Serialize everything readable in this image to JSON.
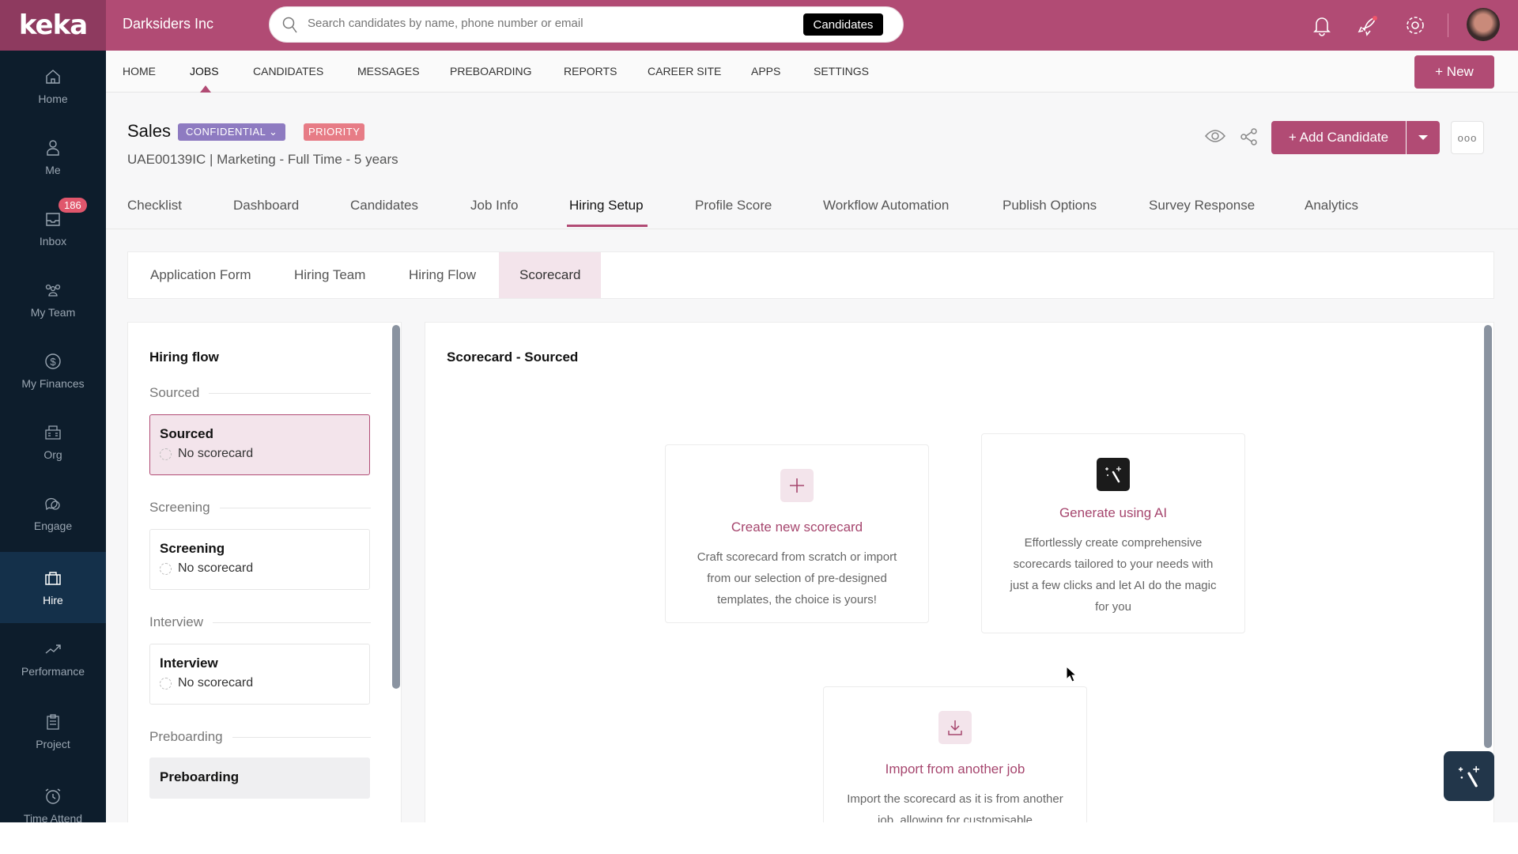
{
  "brand": {
    "logo": "keka",
    "company": "Darksiders Inc",
    "primary": "#b14b74",
    "sidebar_bg": "#0d1d2c"
  },
  "search": {
    "placeholder": "Search candidates by name, phone number or email",
    "scope": "Candidates"
  },
  "topbar_icons": [
    "bell-icon",
    "rocket-icon",
    "gear-icon",
    "avatar"
  ],
  "sidebar": {
    "items": [
      {
        "label": "Home",
        "icon": "home-icon"
      },
      {
        "label": "Me",
        "icon": "user-icon"
      },
      {
        "label": "Inbox",
        "icon": "inbox-icon",
        "badge": "186"
      },
      {
        "label": "My Team",
        "icon": "team-icon"
      },
      {
        "label": "My Finances",
        "icon": "dollar-icon"
      },
      {
        "label": "Org",
        "icon": "building-icon"
      },
      {
        "label": "Engage",
        "icon": "chat-icon"
      },
      {
        "label": "Hire",
        "icon": "briefcase-icon",
        "active": true
      },
      {
        "label": "Performance",
        "icon": "trend-icon"
      },
      {
        "label": "Project",
        "icon": "clipboard-icon"
      },
      {
        "label": "Time Attend",
        "icon": "alarm-icon"
      }
    ]
  },
  "nav": {
    "items": [
      "HOME",
      "JOBS",
      "CANDIDATES",
      "MESSAGES",
      "PREBOARDING",
      "REPORTS",
      "CAREER SITE",
      "APPS",
      "SETTINGS"
    ],
    "active": "JOBS",
    "new_label": "+ New"
  },
  "job": {
    "title": "Sales",
    "confidential": "CONFIDENTIAL",
    "priority": "PRIORITY",
    "subtitle": "UAE00139IC | Marketing - Full Time - 5 years",
    "add_candidate": "+ Add Candidate",
    "more": "ooo"
  },
  "tabs": {
    "items": [
      "Checklist",
      "Dashboard",
      "Candidates",
      "Job Info",
      "Hiring Setup",
      "Profile Score",
      "Workflow Automation",
      "Publish Options",
      "Survey Response",
      "Analytics"
    ],
    "active": "Hiring Setup"
  },
  "subtabs": {
    "items": [
      "Application Form",
      "Hiring Team",
      "Hiring Flow",
      "Scorecard"
    ],
    "active": "Scorecard"
  },
  "hiring_flow": {
    "title": "Hiring flow",
    "sections": [
      {
        "label": "Sourced",
        "stage": "Sourced",
        "status": "No scorecard",
        "selected": true
      },
      {
        "label": "Screening",
        "stage": "Screening",
        "status": "No scorecard"
      },
      {
        "label": "Interview",
        "stage": "Interview",
        "status": "No scorecard"
      },
      {
        "label": "Preboarding",
        "stage": "Preboarding"
      }
    ]
  },
  "scorecard": {
    "title": "Scorecard - Sourced",
    "options": [
      {
        "title": "Create new scorecard",
        "desc": "Craft scorecard from scratch or import from our selection of pre-designed templates, the choice is yours!",
        "icon": "plus-icon"
      },
      {
        "title": "Generate using AI",
        "desc": "Effortlessly create comprehensive scorecards tailored to your needs with just a few clicks and let AI do the magic for you",
        "icon": "magic-wand-icon"
      },
      {
        "title": "Import from another job",
        "desc": "Import the scorecard as it is from another job, allowing for customisable",
        "icon": "download-icon"
      }
    ]
  }
}
